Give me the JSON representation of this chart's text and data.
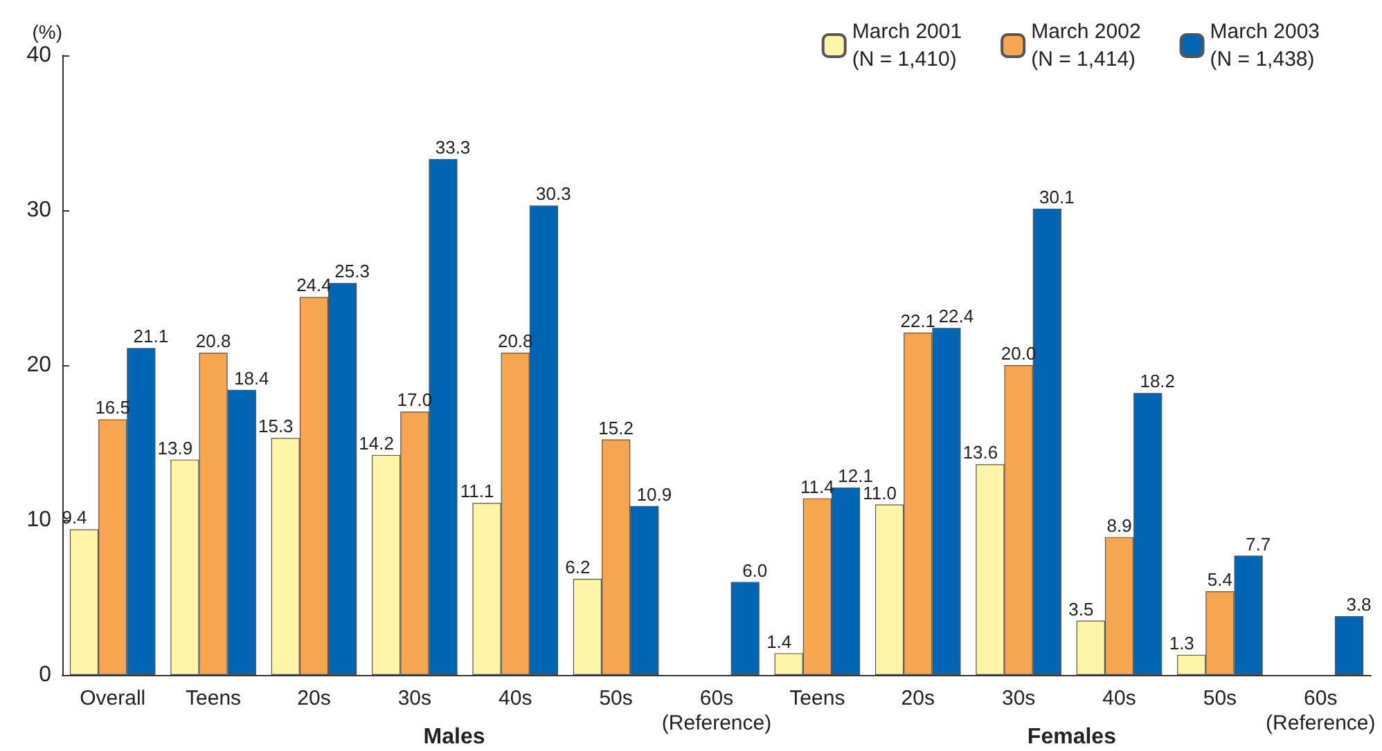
{
  "chart_data": {
    "type": "bar",
    "ylabel": "(%)",
    "categories": [
      "Overall",
      "Teens",
      "20s",
      "30s",
      "40s",
      "50s",
      "60s\n(Reference)",
      "Teens",
      "20s",
      "30s",
      "40s",
      "50s",
      "60s\n(Reference)"
    ],
    "series": [
      {
        "name": "March 2001\n(N = 1,410)",
        "color": "#fff5a8",
        "values": [
          9.4,
          13.9,
          15.3,
          14.2,
          11.1,
          6.2,
          null,
          1.4,
          11.0,
          13.6,
          3.5,
          1.3,
          null
        ],
        "value_labels": [
          "9.4",
          "13.9",
          "15.3",
          "14.2",
          "11.1",
          "6.2",
          null,
          "1.4",
          "11.0",
          "13.6",
          "3.5",
          "1.3",
          null
        ]
      },
      {
        "name": "March 2002\n(N = 1,414)",
        "color": "#f6a550",
        "values": [
          16.5,
          20.8,
          24.4,
          17.0,
          20.8,
          15.2,
          null,
          11.4,
          22.1,
          20.0,
          8.9,
          5.4,
          null
        ],
        "value_labels": [
          "16.5",
          "20.8",
          "24.4",
          "17.0",
          "20.8",
          "15.2",
          null,
          "11.4",
          "22.1",
          "20.0",
          "8.9",
          "5.4",
          null
        ]
      },
      {
        "name": "March 2003\n(N = 1,438)",
        "color": "#0066b3",
        "values": [
          21.1,
          18.4,
          25.3,
          33.3,
          30.3,
          10.9,
          6.0,
          12.1,
          22.4,
          30.1,
          18.2,
          7.7,
          3.8
        ],
        "value_labels": [
          "21.1",
          "18.4",
          "25.3",
          "33.3",
          "30.3",
          "10.9",
          "6.0",
          "12.1",
          "22.4",
          "30.1",
          "18.2",
          "7.7",
          "3.8"
        ]
      }
    ],
    "ylim": [
      0,
      40
    ],
    "yticks": [
      0,
      10,
      20,
      30,
      40
    ],
    "grid": false,
    "legend": "top right",
    "annotations": [
      "Males",
      "Females"
    ]
  }
}
